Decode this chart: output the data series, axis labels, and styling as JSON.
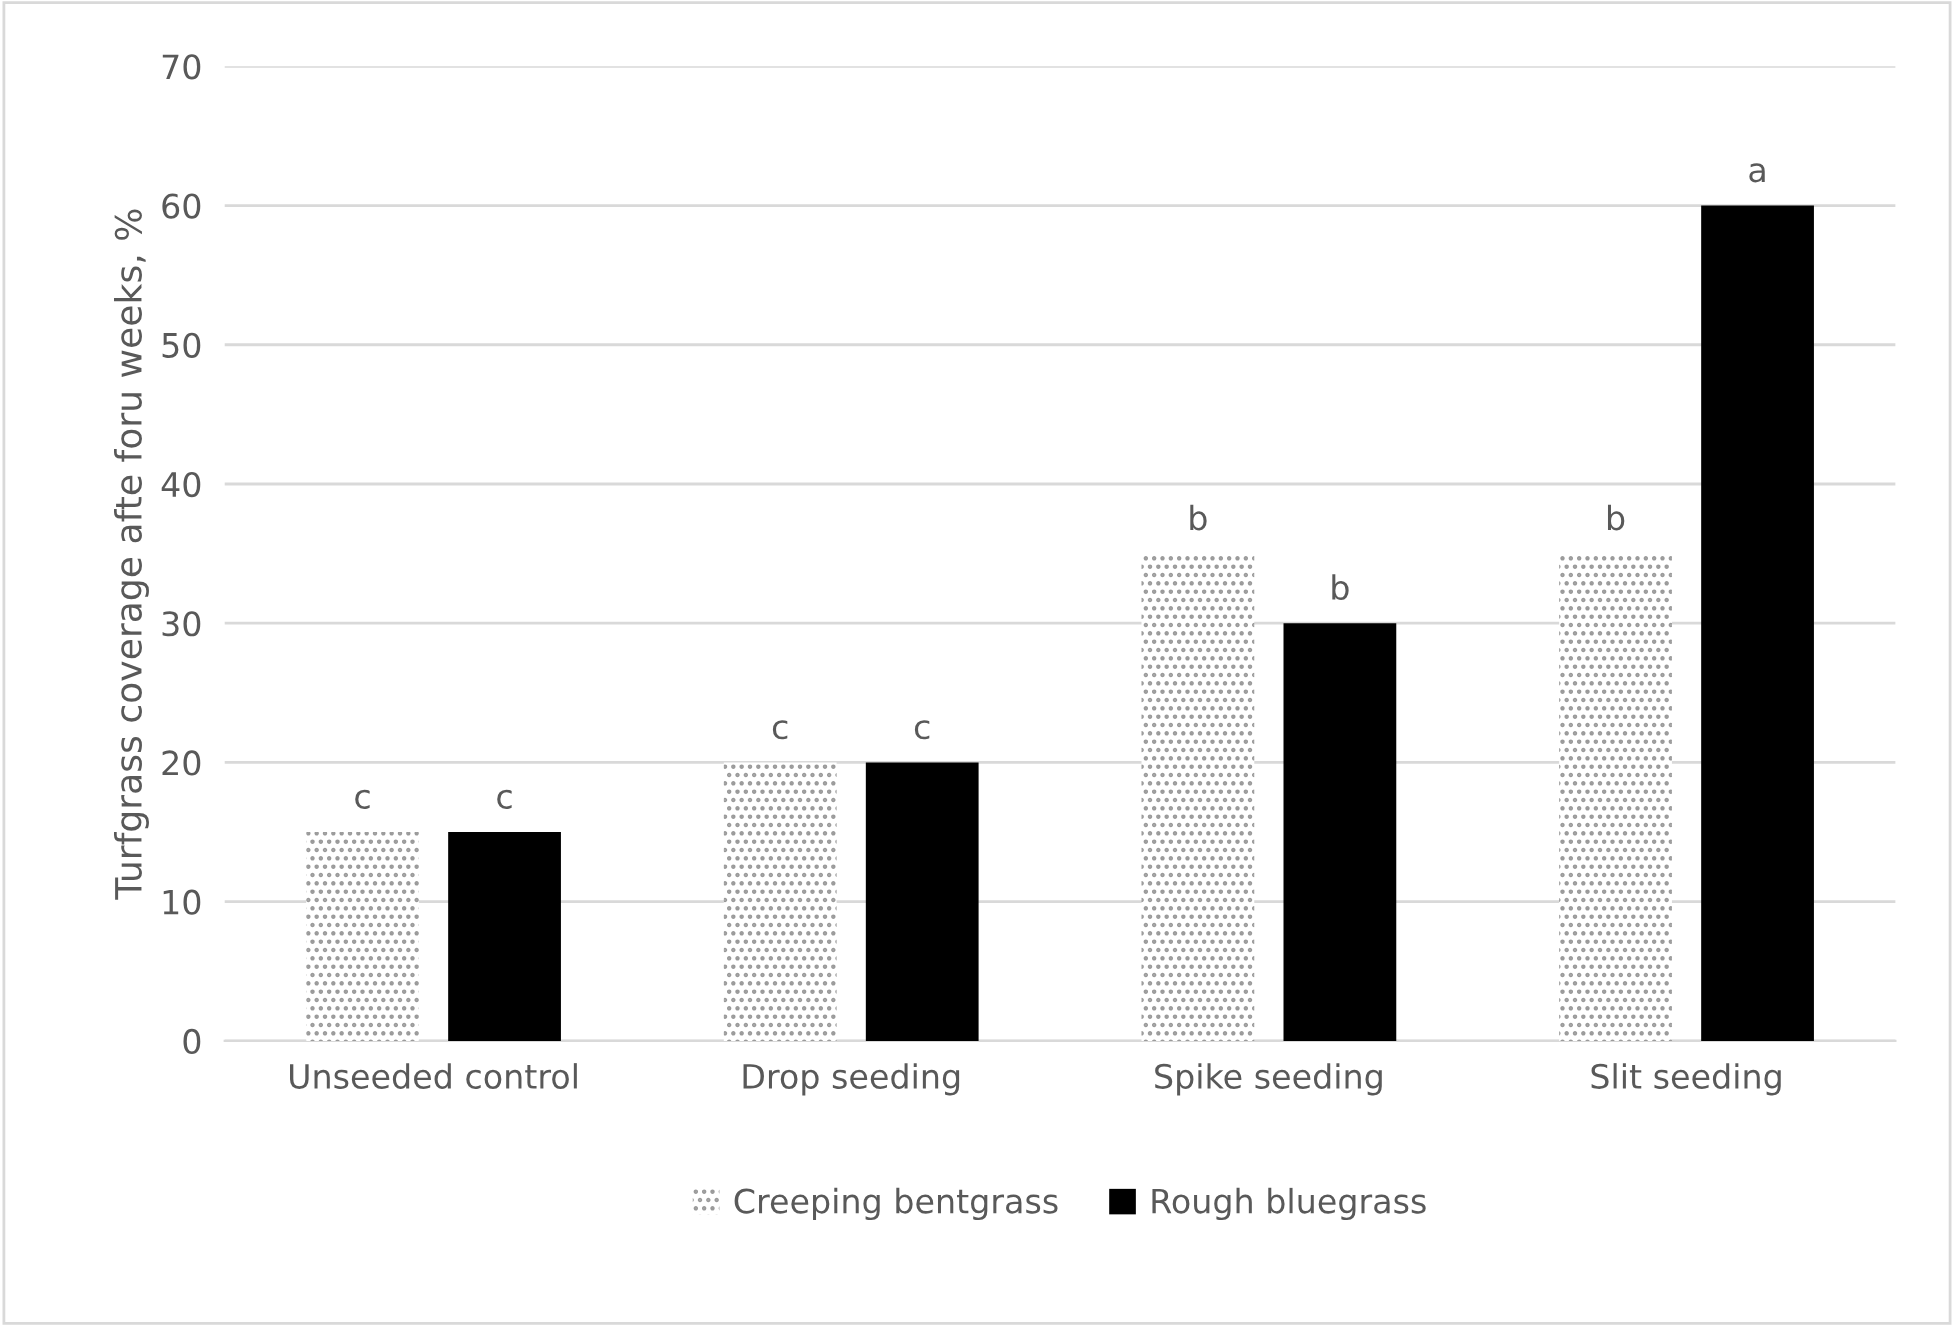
{
  "chart_data": {
    "type": "bar",
    "ylabel": "Turfgrass coverage afte foru weeks, %",
    "categories": [
      "Unseeded control",
      "Drop seeding",
      "Spike seeding",
      "Slit seeding"
    ],
    "series": [
      {
        "name": "Creeping bentgrass",
        "color": "#9a9a9a",
        "values": [
          15,
          20,
          35,
          35
        ],
        "value_labels": [
          "c",
          "c",
          "b",
          "b"
        ]
      },
      {
        "name": "Rough bluegrass",
        "color": "#000000",
        "values": [
          15,
          20,
          30,
          60
        ],
        "value_labels": [
          "c",
          "c",
          "b",
          "a"
        ]
      }
    ],
    "ylim": [
      0,
      70
    ],
    "yticks": [
      0,
      10,
      20,
      30,
      40,
      50,
      60,
      70
    ],
    "grid": "y",
    "legend": "bottom"
  }
}
